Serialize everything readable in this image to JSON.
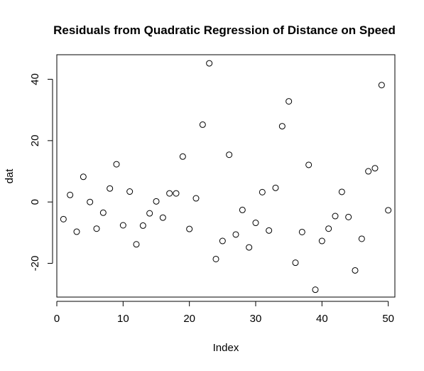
{
  "chart_data": {
    "type": "scatter",
    "title": "Residuals from Quadratic Regression of Distance on Speed",
    "xlabel": "Index",
    "ylabel": "dat",
    "xlim": [
      0,
      51
    ],
    "ylim": [
      -31,
      48
    ],
    "x_ticks": [
      0,
      10,
      20,
      30,
      40,
      50
    ],
    "y_ticks": [
      -20,
      0,
      20,
      40
    ],
    "grid": false,
    "legend": "none",
    "marker": "open-circle",
    "series": [
      {
        "x": [
          1,
          2,
          3,
          4,
          5,
          6,
          7,
          8,
          9,
          10,
          11,
          12,
          13,
          14,
          15,
          16,
          17,
          18,
          19,
          20,
          21,
          22,
          23,
          24,
          25,
          26,
          27,
          28,
          29,
          30,
          31,
          32,
          33,
          34,
          35,
          36,
          37,
          38,
          39,
          40,
          41,
          42,
          43,
          44,
          45,
          46,
          47,
          48,
          49,
          50
        ],
        "values": [
          -5.6,
          2.3,
          -9.7,
          8.2,
          0.0,
          -8.7,
          -3.5,
          4.4,
          12.3,
          -7.6,
          3.4,
          -13.8,
          -7.7,
          -3.7,
          0.2,
          -5.1,
          2.8,
          2.8,
          14.8,
          -8.8,
          1.2,
          25.2,
          45.2,
          -18.6,
          -12.7,
          15.4,
          -10.6,
          -2.6,
          -14.8,
          -6.8,
          3.2,
          -9.3,
          4.6,
          24.7,
          32.8,
          -19.8,
          -9.8,
          12.1,
          -28.6,
          -12.7,
          -8.7,
          -4.6,
          3.3,
          -4.9,
          -22.3,
          -12.0,
          10.0,
          11.0,
          38.1,
          -2.7
        ]
      }
    ]
  }
}
